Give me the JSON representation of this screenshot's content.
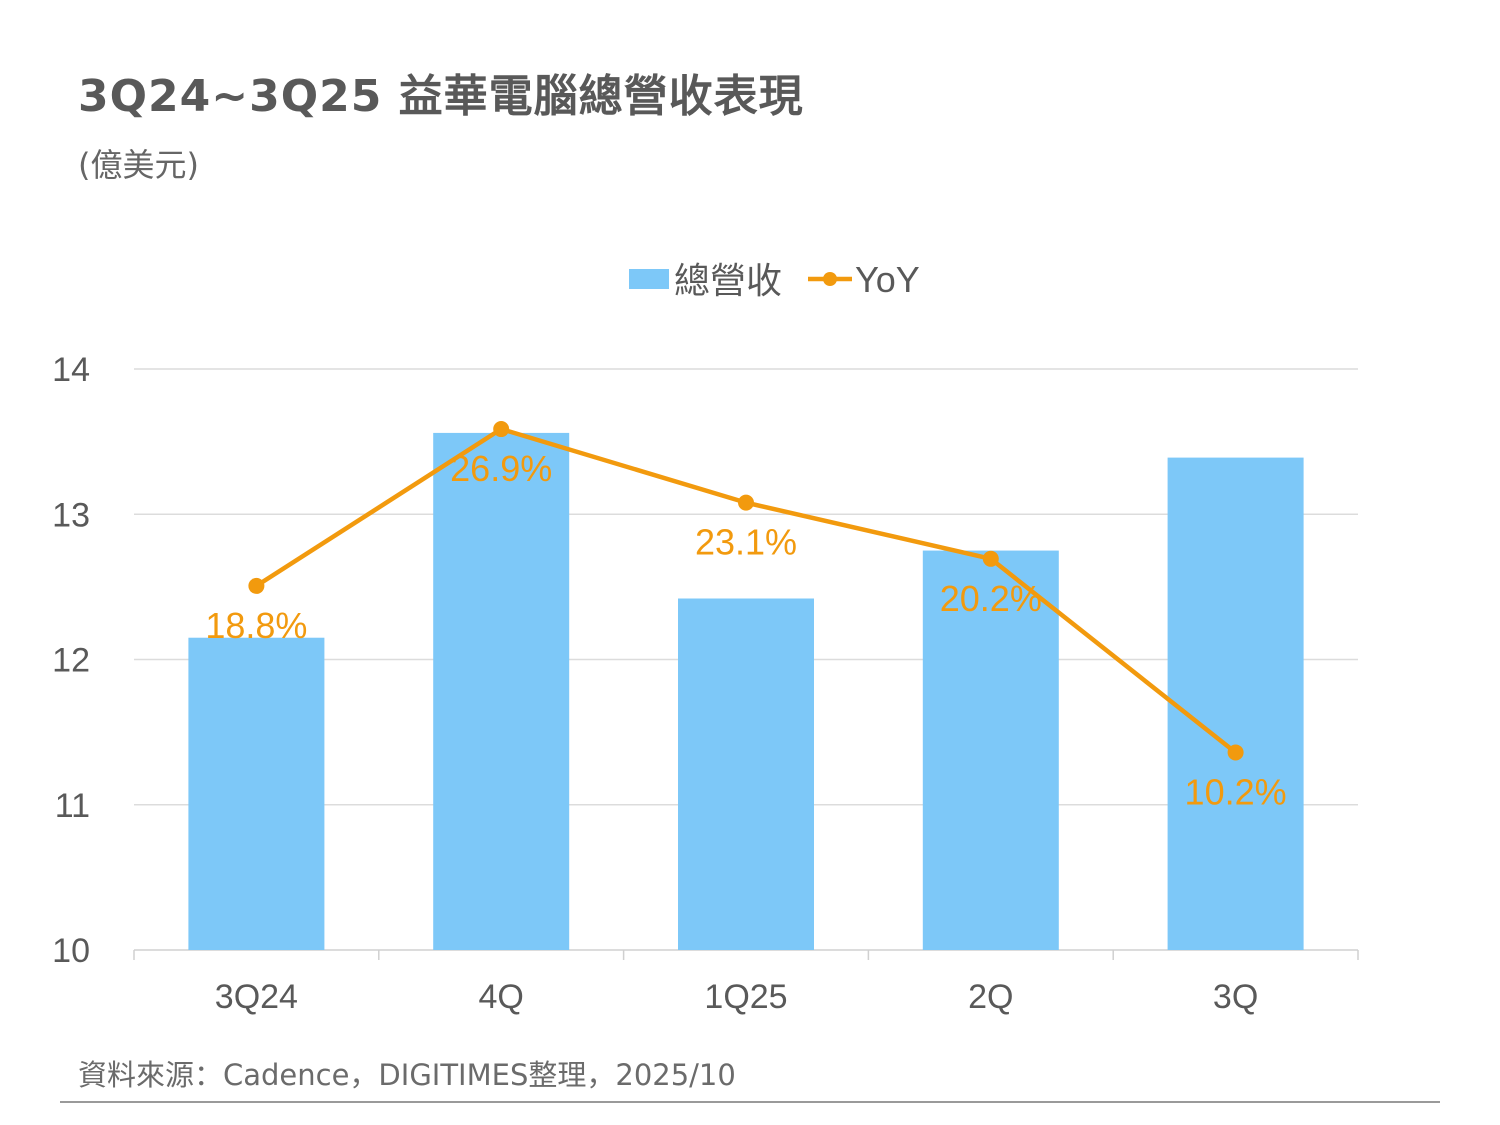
{
  "chart_data": {
    "type": "bar",
    "title": "3Q24~3Q25 益華電腦總營收表現",
    "subtitle": "(億美元)",
    "categories": [
      "3Q24",
      "4Q",
      "1Q25",
      "2Q",
      "3Q"
    ],
    "series": [
      {
        "name": "總營收",
        "type": "bar",
        "axis": "primary",
        "color": "#7DC8F8",
        "values": [
          12.15,
          13.56,
          12.42,
          12.75,
          13.39
        ]
      },
      {
        "name": "YoY",
        "type": "line",
        "axis": "secondary",
        "color": "#F29A0E",
        "values": [
          18.8,
          26.9,
          23.1,
          20.2,
          10.2
        ],
        "labels": [
          "18.8%",
          "26.9%",
          "23.1%",
          "20.2%",
          "10.2%"
        ]
      }
    ],
    "ylim": [
      10,
      14
    ],
    "yticks": [
      "10",
      "11",
      "12",
      "13",
      "14"
    ],
    "y2lim": [
      0,
      30
    ],
    "grid": true,
    "legend": "top-center",
    "xlabel": "",
    "ylabel": ""
  },
  "source": "資料來源：Cadence，DIGITIMES整理，2025/10"
}
